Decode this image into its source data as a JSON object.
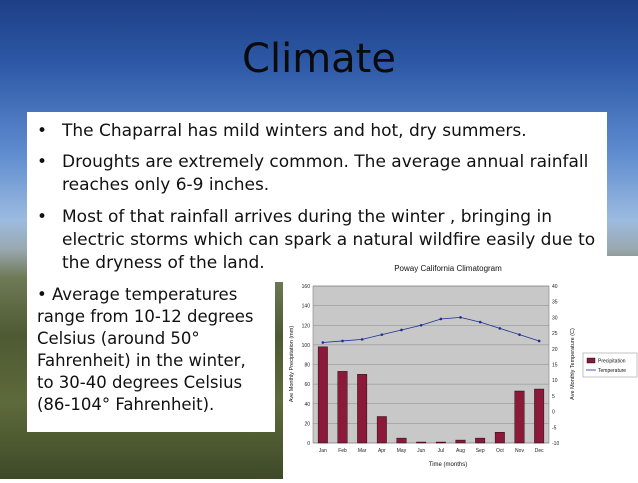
{
  "slide": {
    "title": "Climate",
    "bullets": [
      {
        "dot": "•",
        "lines": [
          "The Chaparral has mild winters and hot, dry summers."
        ]
      },
      {
        "dot": "•",
        "lines": [
          "Droughts are extremely common. The average annual rainfall",
          "reaches only 6-9 inches."
        ]
      },
      {
        "dot": "•",
        "lines": [
          "Most of that rainfall arrives during the winter , bringing in",
          "electric storms which can spark a natural wildfire easily due to",
          "the dryness of the land."
        ]
      }
    ],
    "side_text": {
      "lines": [
        "•  Average temperatures",
        "range from 10-12 degrees",
        "Celsius (around 50°",
        "Fahrenheit) in the winter,",
        "to 30-40 degrees Celsius",
        "(86-104° Fahrenheit)."
      ]
    }
  },
  "chart_data": {
    "type": "bar",
    "title": "Poway California Climatogram",
    "xlabel": "Time (months)",
    "ylabel": "Ave Monthly Precipitation (mm)",
    "ylabel_right": "Ave Monthly Temperature (C)",
    "categories": [
      "Jan",
      "Feb",
      "Mar",
      "Apr",
      "May",
      "Jun",
      "Jul",
      "Aug",
      "Sep",
      "Oct",
      "Nov",
      "Dec"
    ],
    "ylim": [
      0,
      160
    ],
    "yticks": [
      0,
      20,
      40,
      60,
      80,
      100,
      120,
      140,
      160
    ],
    "ylim_right": [
      -10,
      40
    ],
    "yticks_right": [
      -10,
      -5,
      0,
      5,
      10,
      15,
      20,
      25,
      30,
      35,
      40
    ],
    "series": [
      {
        "name": "Precipitation",
        "kind": "bar",
        "axis": "left",
        "color": "#8b1a3a",
        "values": [
          98,
          73,
          70,
          27,
          5,
          1,
          1,
          3,
          5,
          11,
          53,
          55
        ]
      },
      {
        "name": "Temperature",
        "kind": "line",
        "axis": "right",
        "color": "#1c2f8c",
        "values": [
          22,
          22.5,
          23,
          24.5,
          26,
          27.5,
          29.5,
          30,
          28.5,
          26.5,
          24.5,
          22.5
        ]
      }
    ],
    "legend": "right",
    "grid": true
  }
}
